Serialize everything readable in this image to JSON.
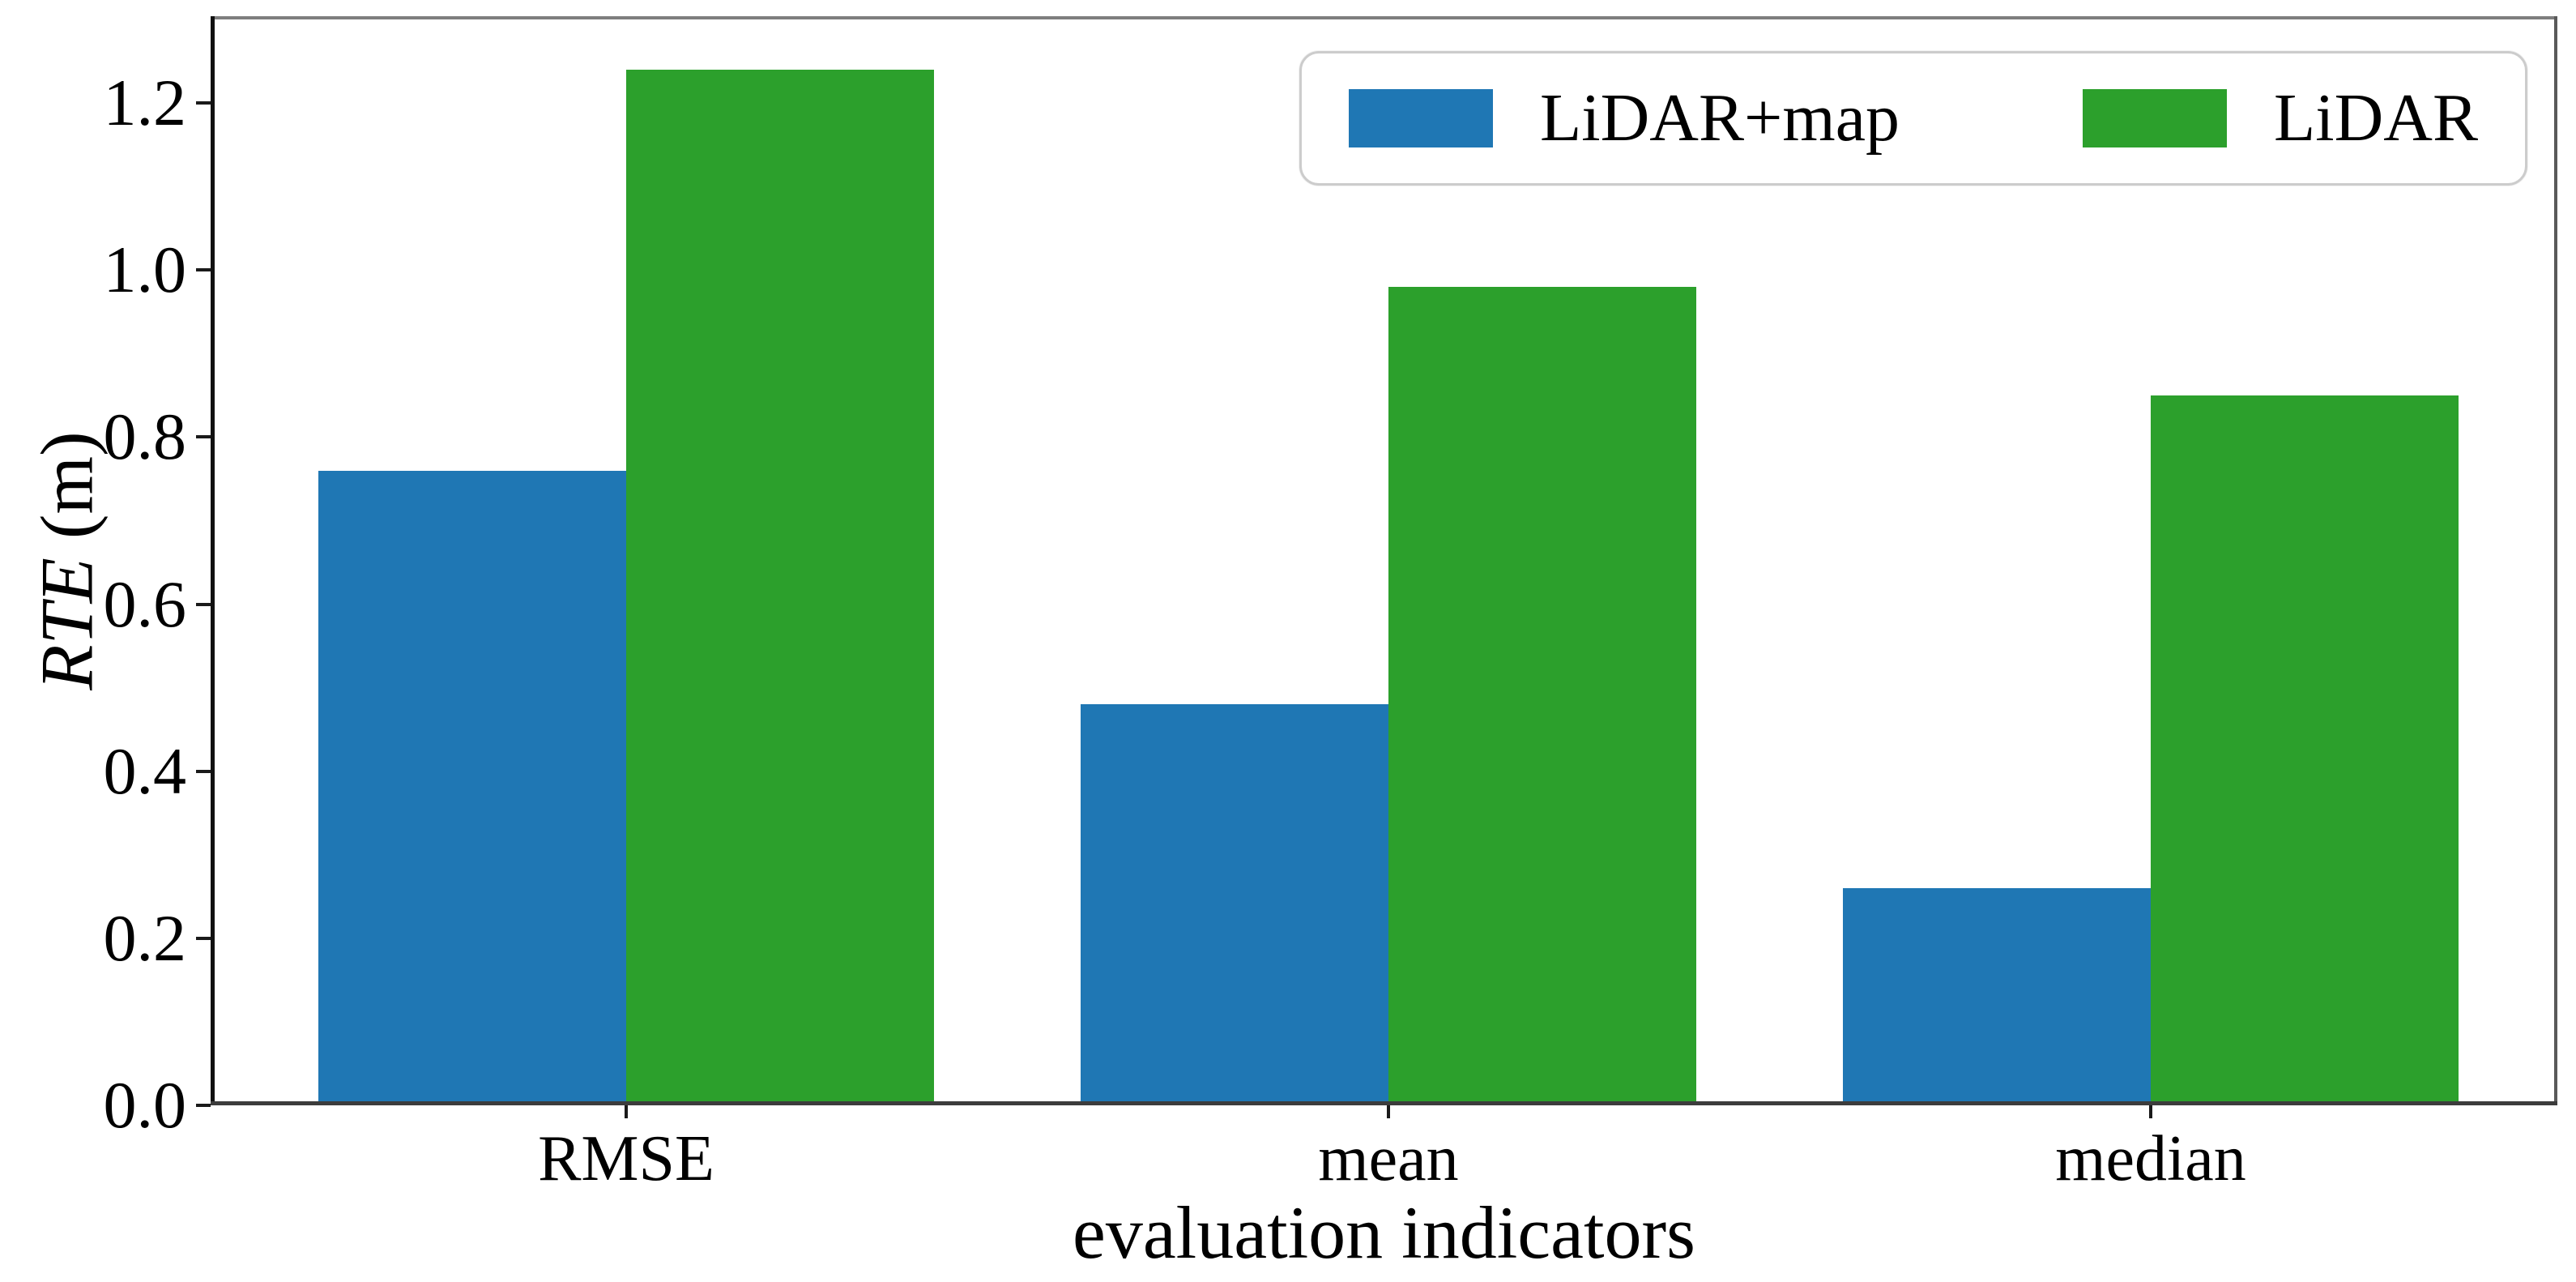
{
  "chart_data": {
    "type": "bar",
    "title": "",
    "xlabel": "evaluation indicators",
    "ylabel_italic": "RTE",
    "ylabel_unit": " (m)",
    "categories": [
      "RMSE",
      "mean",
      "median"
    ],
    "series": [
      {
        "name": "LiDAR+map",
        "color": "#1f77b4",
        "values": [
          0.76,
          0.48,
          0.26
        ]
      },
      {
        "name": "LiDAR",
        "color": "#2ca02c",
        "values": [
          1.24,
          0.98,
          0.85
        ]
      }
    ],
    "yticks": [
      0.0,
      0.2,
      0.4,
      0.6,
      0.8,
      1.0,
      1.2
    ],
    "ytick_labels": [
      "0.0",
      "0.2",
      "0.4",
      "0.6",
      "0.8",
      "1.0",
      "1.2"
    ],
    "ylim": [
      0,
      1.304
    ],
    "grid": false,
    "legend_position": "upper right",
    "axis_color": "#1a1a1a"
  }
}
